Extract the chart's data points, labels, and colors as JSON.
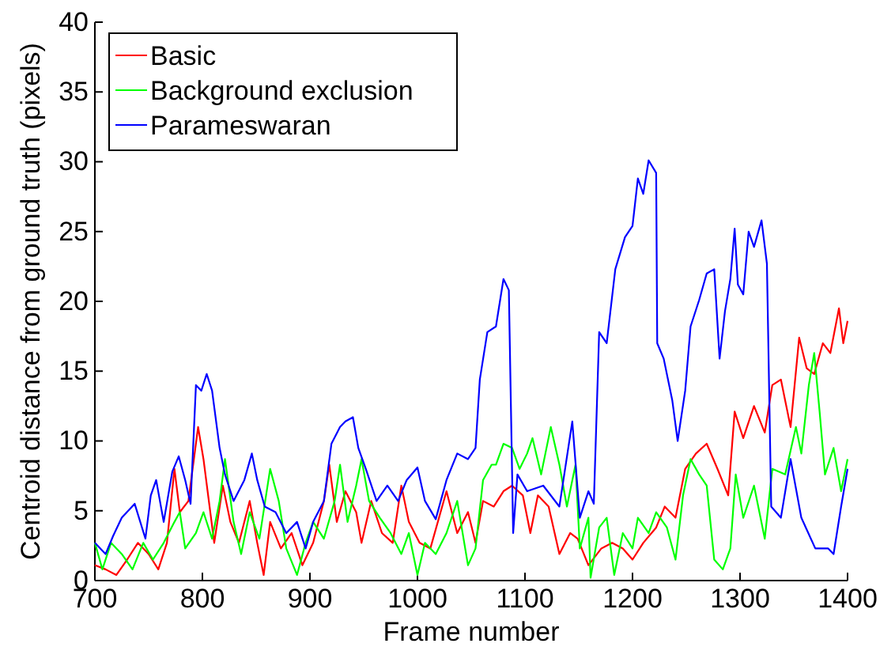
{
  "chart_data": {
    "type": "line",
    "xlabel": "Frame number",
    "ylabel": "Centroid distance from ground truth (pixels)",
    "xlim": [
      700,
      1400
    ],
    "ylim": [
      0,
      40
    ],
    "xticks": [
      700,
      800,
      900,
      1000,
      1100,
      1200,
      1300,
      1400
    ],
    "yticks": [
      0,
      5,
      10,
      15,
      20,
      25,
      30,
      35,
      40
    ],
    "grid": false,
    "legend": "top left",
    "marker": "none",
    "line_style": "solid",
    "series": [
      {
        "name": "Basic",
        "color": "#ff0000",
        "x": [
          700,
          710,
          720,
          730,
          740,
          750,
          759,
          767,
          774,
          779,
          787,
          796,
          801,
          806,
          811,
          819,
          826,
          834,
          844,
          851,
          857,
          863,
          873,
          883,
          893,
          903,
          913,
          918,
          925,
          933,
          943,
          948,
          957,
          967,
          977,
          985,
          992,
          1002,
          1012,
          1027,
          1037,
          1047,
          1054,
          1061,
          1071,
          1080,
          1088,
          1098,
          1105,
          1112,
          1122,
          1132,
          1142,
          1149,
          1159,
          1171,
          1181,
          1191,
          1200,
          1210,
          1222,
          1230,
          1240,
          1249,
          1259,
          1269,
          1279,
          1289,
          1295,
          1303,
          1313,
          1323,
          1330,
          1338,
          1347,
          1355,
          1362,
          1369,
          1377,
          1384,
          1392,
          1396,
          1400
        ],
        "values": [
          1.1,
          0.8,
          0.4,
          1.5,
          2.7,
          1.9,
          0.8,
          2.7,
          8.0,
          4.9,
          5.7,
          11.0,
          8.7,
          5.7,
          2.7,
          6.8,
          4.2,
          2.7,
          5.7,
          2.7,
          0.4,
          4.2,
          2.3,
          3.4,
          1.1,
          2.7,
          5.7,
          8.3,
          4.2,
          6.4,
          4.9,
          2.7,
          5.7,
          3.4,
          2.7,
          6.8,
          4.2,
          2.7,
          2.3,
          6.4,
          3.4,
          4.9,
          2.7,
          5.7,
          5.3,
          6.4,
          6.8,
          6.1,
          3.4,
          6.1,
          5.3,
          1.9,
          3.4,
          3.0,
          1.1,
          2.3,
          2.7,
          2.3,
          1.5,
          2.7,
          3.8,
          5.3,
          4.5,
          8.0,
          9.1,
          9.8,
          8.0,
          6.1,
          12.1,
          10.2,
          12.5,
          10.6,
          14.0,
          14.4,
          11.0,
          17.4,
          15.2,
          14.8,
          17.0,
          16.3,
          19.5,
          17.0,
          18.6
        ]
      },
      {
        "name": "Background exclusion",
        "color": "#00ff00",
        "x": [
          700,
          707,
          715,
          725,
          735,
          745,
          754,
          764,
          774,
          779,
          784,
          794,
          801,
          809,
          816,
          821,
          829,
          836,
          844,
          853,
          863,
          871,
          878,
          888,
          896,
          903,
          913,
          923,
          928,
          935,
          943,
          948,
          955,
          965,
          975,
          985,
          992,
          1000,
          1007,
          1017,
          1027,
          1037,
          1047,
          1054,
          1061,
          1069,
          1073,
          1080,
          1088,
          1095,
          1102,
          1107,
          1115,
          1124,
          1132,
          1139,
          1147,
          1151,
          1159,
          1161,
          1169,
          1176,
          1183,
          1191,
          1200,
          1205,
          1215,
          1222,
          1232,
          1240,
          1247,
          1254,
          1262,
          1269,
          1276,
          1284,
          1291,
          1296,
          1303,
          1313,
          1323,
          1330,
          1342,
          1352,
          1357,
          1364,
          1369,
          1374,
          1379,
          1387,
          1394,
          1400
        ],
        "values": [
          2.7,
          0.8,
          2.7,
          1.9,
          0.8,
          2.7,
          1.5,
          2.7,
          4.2,
          4.9,
          2.3,
          3.4,
          4.9,
          3.0,
          5.7,
          8.7,
          4.2,
          1.9,
          4.9,
          3.0,
          8.0,
          5.7,
          2.3,
          0.4,
          2.7,
          4.2,
          3.0,
          5.7,
          8.3,
          4.2,
          6.8,
          8.7,
          5.7,
          4.5,
          3.4,
          1.9,
          3.4,
          0.4,
          2.7,
          1.9,
          3.4,
          5.7,
          1.1,
          2.3,
          7.2,
          8.3,
          8.3,
          9.8,
          9.5,
          8.0,
          9.1,
          10.2,
          7.6,
          11.0,
          8.3,
          5.3,
          8.3,
          2.3,
          4.5,
          0.2,
          3.8,
          4.5,
          0.4,
          3.4,
          2.3,
          4.5,
          3.4,
          4.9,
          3.8,
          1.5,
          6.1,
          8.7,
          7.6,
          6.8,
          1.5,
          0.8,
          2.3,
          7.6,
          4.5,
          6.8,
          3.0,
          8.0,
          7.6,
          11.0,
          9.1,
          14.0,
          16.3,
          12.1,
          7.6,
          9.5,
          6.4,
          8.7
        ]
      },
      {
        "name": "Parameswaran",
        "color": "#0000ff",
        "x": [
          700,
          710,
          717,
          725,
          737,
          747,
          752,
          757,
          764,
          772,
          778,
          784,
          789,
          794,
          799,
          804,
          809,
          816,
          821,
          829,
          839,
          846,
          851,
          858,
          868,
          878,
          888,
          896,
          903,
          913,
          920,
          928,
          933,
          940,
          945,
          952,
          962,
          972,
          982,
          990,
          1000,
          1007,
          1017,
          1027,
          1037,
          1047,
          1054,
          1058,
          1065,
          1073,
          1080,
          1085,
          1089,
          1093,
          1102,
          1117,
          1132,
          1144,
          1151,
          1159,
          1164,
          1169,
          1176,
          1184,
          1193,
          1200,
          1205,
          1210,
          1215,
          1222,
          1223,
          1229,
          1237,
          1242,
          1249,
          1254,
          1262,
          1269,
          1276,
          1281,
          1286,
          1291,
          1295,
          1298,
          1303,
          1308,
          1313,
          1320,
          1325,
          1329,
          1338,
          1347,
          1357,
          1370,
          1382,
          1387,
          1394,
          1400
        ],
        "values": [
          2.7,
          1.9,
          3.2,
          4.5,
          5.5,
          3.0,
          6.1,
          7.2,
          4.2,
          7.8,
          8.9,
          7.2,
          5.5,
          14.0,
          13.6,
          14.8,
          13.6,
          9.5,
          7.6,
          5.7,
          7.2,
          9.1,
          7.2,
          5.3,
          4.9,
          3.4,
          4.2,
          2.3,
          4.2,
          5.7,
          9.8,
          11.0,
          11.4,
          11.7,
          9.5,
          8.0,
          5.7,
          6.8,
          5.7,
          7.2,
          8.1,
          5.7,
          4.4,
          7.2,
          9.1,
          8.7,
          9.5,
          14.4,
          17.8,
          18.2,
          21.6,
          20.8,
          3.4,
          7.6,
          6.4,
          6.8,
          5.3,
          11.4,
          4.5,
          6.4,
          5.5,
          17.8,
          17.0,
          22.3,
          24.6,
          25.4,
          28.8,
          27.7,
          30.1,
          29.2,
          17.0,
          15.9,
          12.9,
          10.0,
          13.6,
          18.2,
          20.1,
          22.0,
          22.3,
          15.9,
          19.3,
          21.6,
          25.2,
          21.2,
          20.5,
          25.0,
          23.9,
          25.8,
          22.7,
          5.3,
          4.5,
          8.7,
          4.5,
          2.3,
          2.3,
          1.9,
          5.3,
          8.0
        ]
      }
    ]
  }
}
